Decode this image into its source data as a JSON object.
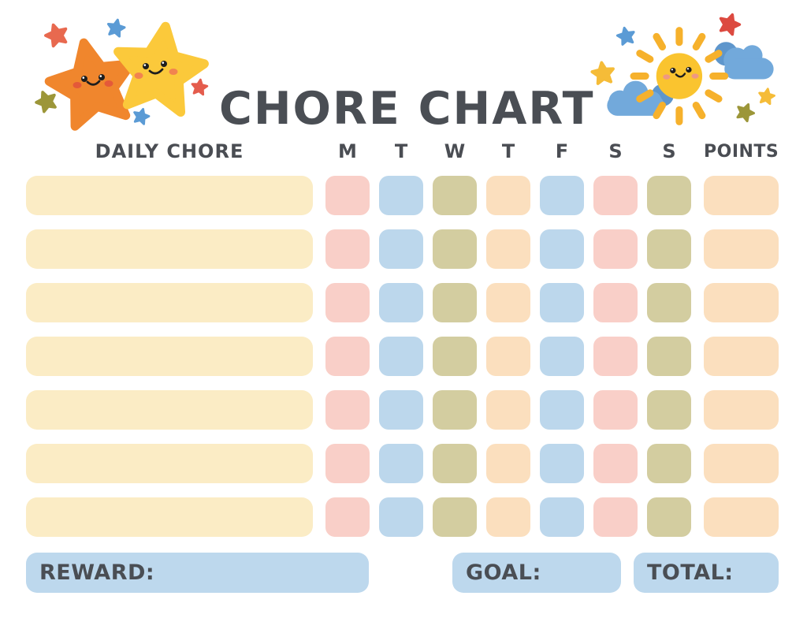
{
  "title": "CHORE CHART",
  "table": {
    "chore_header": "DAILY CHORE",
    "day_headers": [
      "M",
      "T",
      "W",
      "T",
      "F",
      "S",
      "S"
    ],
    "points_header": "POINTS",
    "rows": 7,
    "chore_cell_color": "cream",
    "day_cell_colors": [
      "pink",
      "blue",
      "olive",
      "peach",
      "blue",
      "pink",
      "olive"
    ],
    "points_cell_color": "peach"
  },
  "footer": {
    "reward_label": "REWARD:",
    "goal_label": "GOAL:",
    "total_label": "TOTAL:"
  },
  "icons": {
    "left_decoration": "two-smiling-stars",
    "right_decoration": "smiling-sun-with-clouds"
  },
  "palette": {
    "cream": "#FBECC5",
    "pink": "#F9CFC8",
    "blue": "#BCD7EC",
    "olive": "#D3CDA0",
    "peach": "#FBDFBE",
    "bar_blue": "#BDD8ED",
    "text": "#4A4E54",
    "star_orange": "#F0862D",
    "star_yellow": "#FBC93B",
    "small_red": "#E8694F",
    "small_blue": "#5B9BD5",
    "small_olive": "#9C9639",
    "sun_yellow": "#FAC42F",
    "ray_yellow": "#F6B12C",
    "cloud_blue": "#72A9DB",
    "cloud_dark_blue": "#5E96CC"
  }
}
